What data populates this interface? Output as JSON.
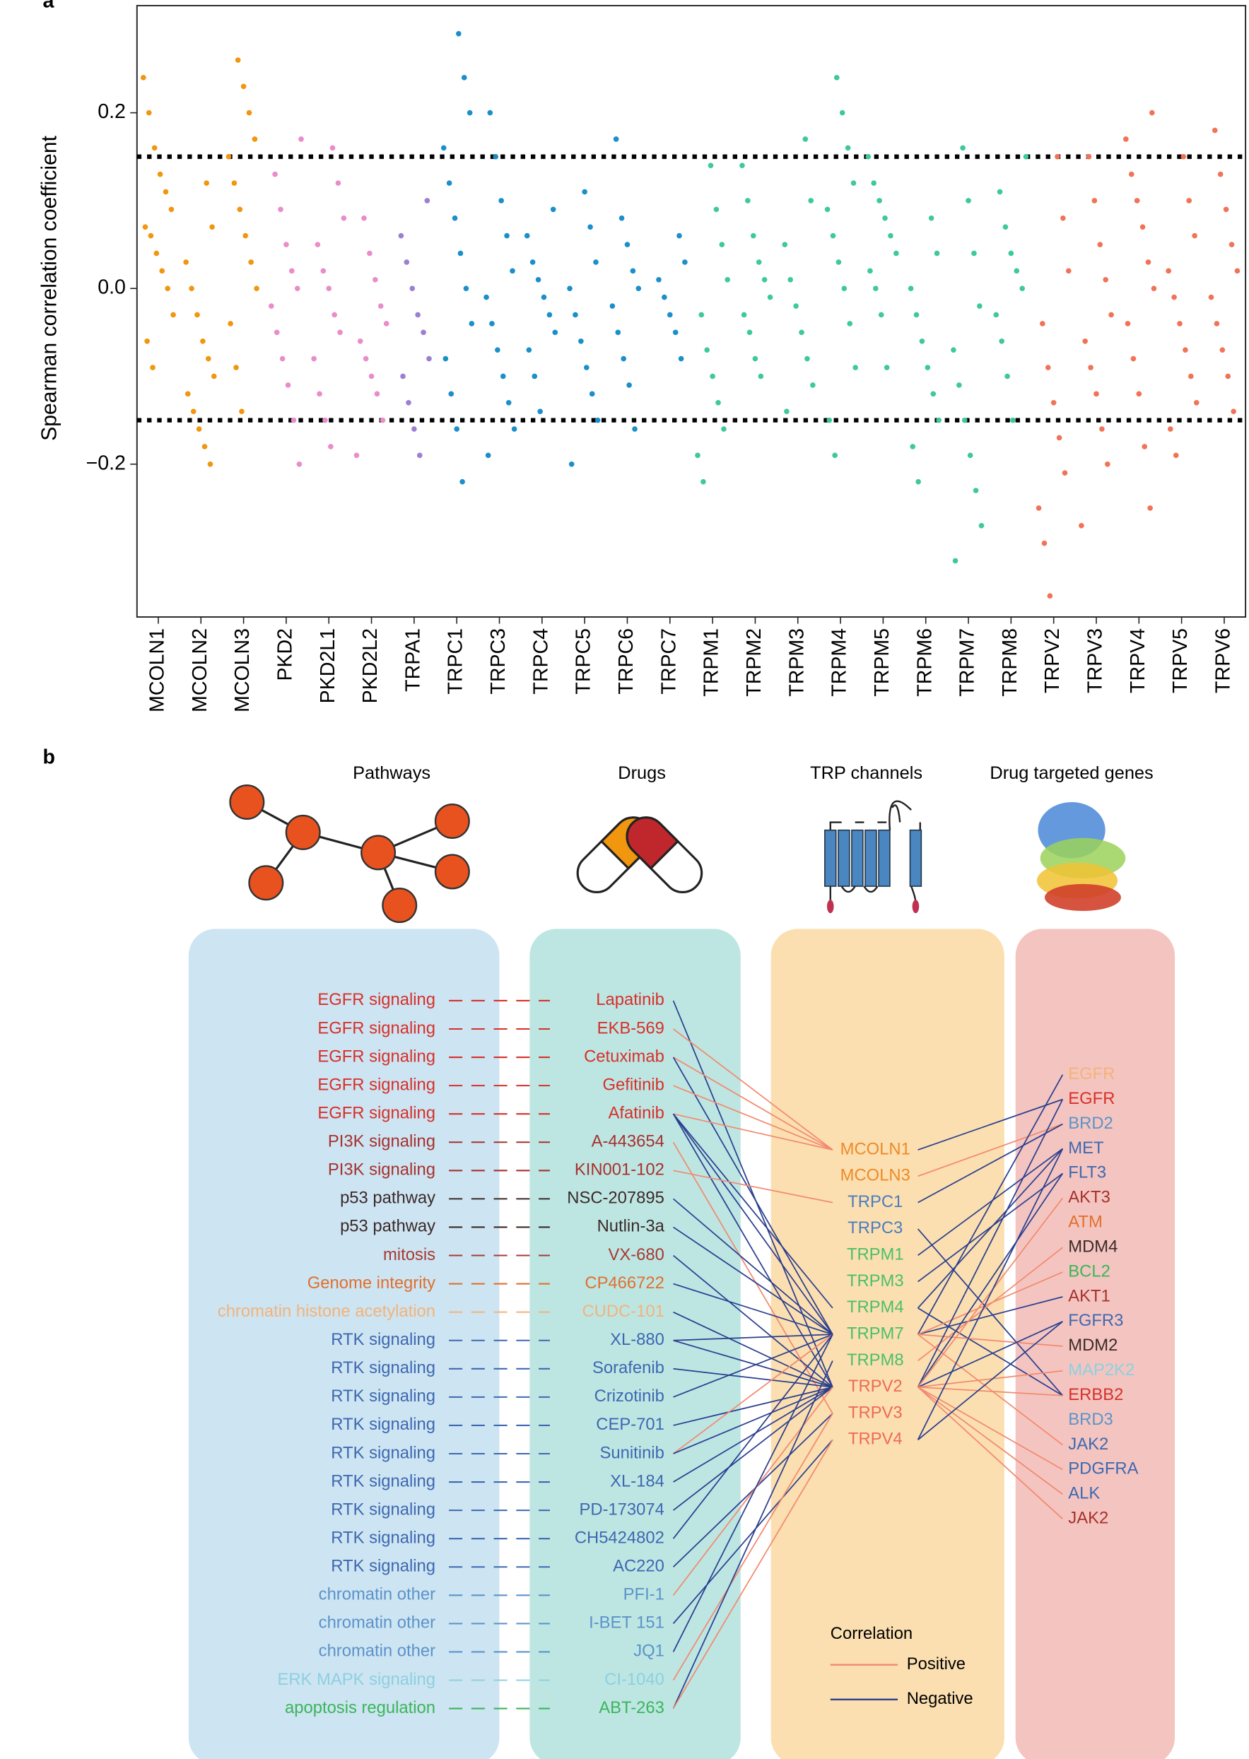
{
  "chart_data": {
    "type": "strip",
    "panel_label": "a",
    "ylabel": "Spearman correlation coefficient",
    "ylim": [
      -0.374,
      0.322
    ],
    "yticks": [
      0.2,
      {
        "value": 0,
        "label": "0.0"
      },
      {
        "value": -0.2,
        "label": "−0.2"
      }
    ],
    "hlines": [
      0.15,
      -0.15
    ],
    "categories": [
      "MCOLN1",
      "MCOLN2",
      "MCOLN3",
      "PKD2",
      "PKD2L1",
      "PKD2L2",
      "TRPA1",
      "TRPC1",
      "TRPC3",
      "TRPC4",
      "TRPC5",
      "TRPC6",
      "TRPC7",
      "TRPM1",
      "TRPM2",
      "TRPM3",
      "TRPM4",
      "TRPM5",
      "TRPM6",
      "TRPM7",
      "TRPM8",
      "TRPV2",
      "TRPV3",
      "TRPV4",
      "TRPV5",
      "TRPV6"
    ],
    "colors": [
      "#f0960f",
      "#f0960f",
      "#f0960f",
      "#e88dc9",
      "#e88dc9",
      "#e88dc9",
      "#9b7fd1",
      "#1a8fc9",
      "#1a8fc9",
      "#1a8fc9",
      "#1a8fc9",
      "#1a8fc9",
      "#1a8fc9",
      "#3ec99a",
      "#3ec99a",
      "#3ec99a",
      "#3ec99a",
      "#3ec99a",
      "#3ec99a",
      "#3ec99a",
      "#3ec99a",
      "#f07358",
      "#f07358",
      "#f07358",
      "#f07358",
      "#f07358"
    ],
    "values": [
      [
        0.24,
        0.2,
        0.16,
        0.13,
        0.11,
        0.09,
        0.07,
        0.06,
        0.04,
        0.02,
        0,
        -0.03,
        -0.06,
        -0.09
      ],
      [
        0.12,
        0.07,
        0.03,
        0,
        -0.03,
        -0.06,
        -0.08,
        -0.1,
        -0.12,
        -0.14,
        -0.16,
        -0.18,
        -0.2
      ],
      [
        0.26,
        0.23,
        0.2,
        0.17,
        0.15,
        0.12,
        0.09,
        0.06,
        0.03,
        0,
        -0.04,
        -0.09,
        -0.14
      ],
      [
        0.17,
        0.13,
        0.09,
        0.05,
        0.02,
        0,
        -0.02,
        -0.05,
        -0.08,
        -0.11,
        -0.15,
        -0.2
      ],
      [
        0.16,
        0.12,
        0.08,
        0.05,
        0.02,
        0,
        -0.03,
        -0.05,
        -0.08,
        -0.12,
        -0.15,
        -0.18
      ],
      [
        0.08,
        0.04,
        0.01,
        -0.02,
        -0.04,
        -0.06,
        -0.08,
        -0.1,
        -0.12,
        -0.15,
        -0.19
      ],
      [
        0.1,
        0.06,
        0.03,
        0,
        -0.03,
        -0.05,
        -0.08,
        -0.1,
        -0.13,
        -0.16,
        -0.19
      ],
      [
        0.29,
        0.24,
        0.2,
        0.16,
        0.12,
        0.08,
        0.04,
        0,
        -0.04,
        -0.08,
        -0.12,
        -0.16,
        -0.22
      ],
      [
        0.2,
        0.15,
        0.1,
        0.06,
        0.02,
        -0.01,
        -0.04,
        -0.07,
        -0.1,
        -0.13,
        -0.16,
        -0.19
      ],
      [
        0.09,
        0.06,
        0.03,
        0.01,
        -0.01,
        -0.03,
        -0.05,
        -0.07,
        -0.1,
        -0.14
      ],
      [
        0.11,
        0.07,
        0.03,
        0,
        -0.03,
        -0.06,
        -0.09,
        -0.12,
        -0.15,
        -0.2
      ],
      [
        0.17,
        0.08,
        0.05,
        0.02,
        0,
        -0.02,
        -0.05,
        -0.08,
        -0.11,
        -0.16
      ],
      [
        0.06,
        0.03,
        0.01,
        -0.01,
        -0.03,
        -0.05,
        -0.08
      ],
      [
        0.14,
        0.09,
        0.05,
        0.01,
        -0.03,
        -0.07,
        -0.1,
        -0.13,
        -0.16,
        -0.19,
        -0.22
      ],
      [
        0.14,
        0.1,
        0.06,
        0.03,
        0.01,
        -0.01,
        -0.03,
        -0.05,
        -0.08,
        -0.1
      ],
      [
        0.17,
        0.1,
        0.05,
        0.01,
        -0.02,
        -0.05,
        -0.08,
        -0.11,
        -0.14
      ],
      [
        0.24,
        0.2,
        0.16,
        0.12,
        0.09,
        0.06,
        0.03,
        0,
        -0.04,
        -0.09,
        -0.15,
        -0.19
      ],
      [
        0.15,
        0.12,
        0.1,
        0.08,
        0.06,
        0.04,
        0.02,
        0,
        -0.03,
        -0.09
      ],
      [
        0.08,
        0.04,
        0,
        -0.03,
        -0.06,
        -0.09,
        -0.12,
        -0.15,
        -0.18,
        -0.22
      ],
      [
        0.16,
        0.1,
        0.04,
        -0.02,
        -0.07,
        -0.11,
        -0.15,
        -0.19,
        -0.23,
        -0.27,
        -0.31
      ],
      [
        0.15,
        0.11,
        0.07,
        0.04,
        0.02,
        0,
        -0.03,
        -0.06,
        -0.1,
        -0.15
      ],
      [
        0.15,
        0.08,
        0.02,
        -0.04,
        -0.09,
        -0.13,
        -0.17,
        -0.21,
        -0.25,
        -0.29,
        -0.35
      ],
      [
        0.15,
        0.1,
        0.05,
        0.01,
        -0.03,
        -0.06,
        -0.09,
        -0.12,
        -0.16,
        -0.2,
        -0.27
      ],
      [
        0.2,
        0.17,
        0.13,
        0.1,
        0.07,
        0.03,
        0,
        -0.04,
        -0.08,
        -0.12,
        -0.18,
        -0.25
      ],
      [
        0.15,
        0.1,
        0.06,
        0.02,
        -0.01,
        -0.04,
        -0.07,
        -0.1,
        -0.13,
        -0.16,
        -0.19
      ],
      [
        0.18,
        0.13,
        0.09,
        0.05,
        0.02,
        -0.01,
        -0.04,
        -0.07,
        -0.1,
        -0.14
      ]
    ]
  },
  "panel_b": {
    "panel_label": "b",
    "column_titles": [
      "Pathways",
      "Drugs",
      "TRP channels",
      "Drug targeted genes"
    ],
    "pathways": [
      {
        "label": "EGFR signaling",
        "color": "#d7302a"
      },
      {
        "label": "EGFR signaling",
        "color": "#d7302a"
      },
      {
        "label": "EGFR signaling",
        "color": "#d7302a"
      },
      {
        "label": "EGFR signaling",
        "color": "#d7302a"
      },
      {
        "label": "EGFR signaling",
        "color": "#d7302a"
      },
      {
        "label": "PI3K signaling",
        "color": "#a6312d"
      },
      {
        "label": "PI3K signaling",
        "color": "#a6312d"
      },
      {
        "label": "p53 pathway",
        "color": "#3a2a28"
      },
      {
        "label": "p53 pathway",
        "color": "#3a2a28"
      },
      {
        "label": "mitosis",
        "color": "#a63a32"
      },
      {
        "label": "Genome integrity",
        "color": "#e0702e"
      },
      {
        "label": "chromatin histone acetylation",
        "color": "#f3b37a"
      },
      {
        "label": "RTK signaling",
        "color": "#3e68b0"
      },
      {
        "label": "RTK signaling",
        "color": "#3e68b0"
      },
      {
        "label": "RTK signaling",
        "color": "#3e68b0"
      },
      {
        "label": "RTK signaling",
        "color": "#3e68b0"
      },
      {
        "label": "RTK signaling",
        "color": "#3e68b0"
      },
      {
        "label": "RTK signaling",
        "color": "#3e68b0"
      },
      {
        "label": "RTK signaling",
        "color": "#3e68b0"
      },
      {
        "label": "RTK signaling",
        "color": "#3e68b0"
      },
      {
        "label": "RTK signaling",
        "color": "#3e68b0"
      },
      {
        "label": "chromatin other",
        "color": "#5b93c9"
      },
      {
        "label": "chromatin other",
        "color": "#5b93c9"
      },
      {
        "label": "chromatin other",
        "color": "#5b93c9"
      },
      {
        "label": "ERK MAPK signaling",
        "color": "#8dd0e0"
      },
      {
        "label": "apoptosis regulation",
        "color": "#3bb55a"
      }
    ],
    "drugs": [
      {
        "label": "Lapatinib",
        "color": "#d7302a"
      },
      {
        "label": "EKB-569",
        "color": "#d7302a"
      },
      {
        "label": "Cetuximab",
        "color": "#d7302a"
      },
      {
        "label": "Gefitinib",
        "color": "#d7302a"
      },
      {
        "label": "Afatinib",
        "color": "#d7302a"
      },
      {
        "label": "A-443654",
        "color": "#a6312d"
      },
      {
        "label": "KIN001-102",
        "color": "#a6312d"
      },
      {
        "label": "NSC-207895",
        "color": "#3a2a28"
      },
      {
        "label": "Nutlin-3a",
        "color": "#3a2a28"
      },
      {
        "label": "VX-680",
        "color": "#a63a32"
      },
      {
        "label": "CP466722",
        "color": "#e0702e"
      },
      {
        "label": "CUDC-101",
        "color": "#f3b37a"
      },
      {
        "label": "XL-880",
        "color": "#3e68b0"
      },
      {
        "label": "Sorafenib",
        "color": "#3e68b0"
      },
      {
        "label": "Crizotinib",
        "color": "#3e68b0"
      },
      {
        "label": "CEP-701",
        "color": "#3e68b0"
      },
      {
        "label": "Sunitinib",
        "color": "#3e68b0"
      },
      {
        "label": "XL-184",
        "color": "#3e68b0"
      },
      {
        "label": "PD-173074",
        "color": "#3e68b0"
      },
      {
        "label": "CH5424802",
        "color": "#3e68b0"
      },
      {
        "label": "AC220",
        "color": "#3e68b0"
      },
      {
        "label": "PFI-1",
        "color": "#5b93c9"
      },
      {
        "label": "I-BET 151",
        "color": "#5b93c9"
      },
      {
        "label": "JQ1",
        "color": "#5b93c9"
      },
      {
        "label": "CI-1040",
        "color": "#8dd0e0"
      },
      {
        "label": "ABT-263",
        "color": "#3bb55a"
      }
    ],
    "channels": [
      {
        "label": "MCOLN1",
        "color": "#ee8a2a"
      },
      {
        "label": "MCOLN3",
        "color": "#ee8a2a"
      },
      {
        "label": "TRPC1",
        "color": "#4a7cc0"
      },
      {
        "label": "TRPC3",
        "color": "#4a7cc0"
      },
      {
        "label": "TRPM1",
        "color": "#4bbf6b"
      },
      {
        "label": "TRPM3",
        "color": "#4bbf6b"
      },
      {
        "label": "TRPM4",
        "color": "#4bbf6b"
      },
      {
        "label": "TRPM7",
        "color": "#4bbf6b"
      },
      {
        "label": "TRPM8",
        "color": "#4bbf6b"
      },
      {
        "label": "TRPV2",
        "color": "#ee6a55"
      },
      {
        "label": "TRPV3",
        "color": "#ee6a55"
      },
      {
        "label": "TRPV4",
        "color": "#ee6a55"
      }
    ],
    "genes": [
      {
        "label": "EGFR",
        "color": "#f3b37a"
      },
      {
        "label": "EGFR",
        "color": "#d7302a"
      },
      {
        "label": "BRD2",
        "color": "#5b93c9"
      },
      {
        "label": "MET",
        "color": "#3e68b0"
      },
      {
        "label": "FLT3",
        "color": "#3e68b0"
      },
      {
        "label": "AKT3",
        "color": "#a6312d"
      },
      {
        "label": "ATM",
        "color": "#e0702e"
      },
      {
        "label": "MDM4",
        "color": "#3a2a28"
      },
      {
        "label": "BCL2",
        "color": "#3bb55a"
      },
      {
        "label": "AKT1",
        "color": "#a6312d"
      },
      {
        "label": "FGFR3",
        "color": "#3e68b0"
      },
      {
        "label": "MDM2",
        "color": "#3a2a28"
      },
      {
        "label": "MAP2K2",
        "color": "#8dd0e0"
      },
      {
        "label": "ERBB2",
        "color": "#d7302a"
      },
      {
        "label": "BRD3",
        "color": "#5b93c9"
      },
      {
        "label": "JAK2",
        "color": "#3e68b0"
      },
      {
        "label": "PDGFRA",
        "color": "#3e68b0"
      },
      {
        "label": "ALK",
        "color": "#3e68b0"
      },
      {
        "label": "JAK2",
        "color": "#a6312d"
      }
    ],
    "positive_color": "#f28a70",
    "negative_color": "#2b3f8f",
    "drug_channel_edges": [
      [
        0,
        9,
        "negative_color"
      ],
      [
        1,
        0,
        "positive_color"
      ],
      [
        2,
        0,
        "positive_color"
      ],
      [
        2,
        7,
        "negative_color"
      ],
      [
        3,
        0,
        "positive_color"
      ],
      [
        4,
        0,
        "positive_color"
      ],
      [
        4,
        7,
        "negative_color"
      ],
      [
        4,
        9,
        "negative_color"
      ],
      [
        4,
        6,
        "negative_color"
      ],
      [
        5,
        10,
        "positive_color"
      ],
      [
        6,
        2,
        "positive_color"
      ],
      [
        7,
        7,
        "negative_color"
      ],
      [
        8,
        7,
        "negative_color"
      ],
      [
        9,
        9,
        "negative_color"
      ],
      [
        10,
        7,
        "negative_color"
      ],
      [
        11,
        9,
        "negative_color"
      ],
      [
        12,
        7,
        "negative_color"
      ],
      [
        12,
        9,
        "negative_color"
      ],
      [
        13,
        9,
        "negative_color"
      ],
      [
        14,
        7,
        "negative_color"
      ],
      [
        15,
        9,
        "negative_color"
      ],
      [
        16,
        7,
        "positive_color"
      ],
      [
        16,
        9,
        "negative_color"
      ],
      [
        17,
        9,
        "negative_color"
      ],
      [
        18,
        9,
        "negative_color"
      ],
      [
        19,
        7,
        "negative_color"
      ],
      [
        20,
        10,
        "negative_color"
      ],
      [
        21,
        9,
        "positive_color"
      ],
      [
        22,
        11,
        "negative_color"
      ],
      [
        23,
        7,
        "negative_color"
      ],
      [
        24,
        10,
        "positive_color"
      ],
      [
        25,
        8,
        "negative_color"
      ],
      [
        25,
        11,
        "positive_color"
      ]
    ],
    "channel_gene_edges": [
      [
        0,
        1,
        "negative_color"
      ],
      [
        1,
        2,
        "positive_color"
      ],
      [
        2,
        2,
        "negative_color"
      ],
      [
        3,
        13,
        "negative_color"
      ],
      [
        4,
        3,
        "negative_color"
      ],
      [
        5,
        4,
        "negative_color"
      ],
      [
        6,
        3,
        "negative_color"
      ],
      [
        6,
        13,
        "negative_color"
      ],
      [
        7,
        0,
        "negative_color"
      ],
      [
        7,
        9,
        "negative_color"
      ],
      [
        7,
        8,
        "positive_color"
      ],
      [
        7,
        11,
        "positive_color"
      ],
      [
        7,
        15,
        "positive_color"
      ],
      [
        8,
        7,
        "positive_color"
      ],
      [
        9,
        1,
        "negative_color"
      ],
      [
        9,
        4,
        "negative_color"
      ],
      [
        9,
        5,
        "positive_color"
      ],
      [
        9,
        10,
        "negative_color"
      ],
      [
        9,
        13,
        "positive_color"
      ],
      [
        9,
        16,
        "positive_color"
      ],
      [
        9,
        17,
        "positive_color"
      ],
      [
        9,
        18,
        "positive_color"
      ],
      [
        9,
        12,
        "positive_color"
      ],
      [
        11,
        10,
        "negative_color"
      ],
      [
        11,
        3,
        "negative_color"
      ]
    ],
    "legend": {
      "title": "Correlation",
      "positive": "Positive",
      "negative": "Negative"
    }
  }
}
